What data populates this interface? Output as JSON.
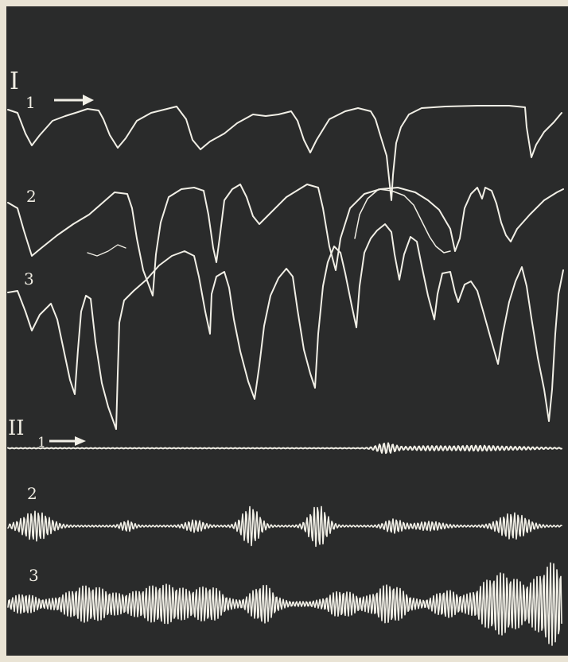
{
  "figure": {
    "section_1": {
      "roman_label": "I",
      "traces": [
        {
          "label": "1",
          "arrow": "→"
        },
        {
          "label": "2"
        },
        {
          "label": "3"
        }
      ]
    },
    "section_2": {
      "roman_label": "II",
      "traces": [
        {
          "label": "1",
          "arrow": "→"
        },
        {
          "label": "2"
        },
        {
          "label": "3"
        }
      ]
    }
  },
  "colors": {
    "paper": "#e9e3d4",
    "background": "#2a2b2b",
    "trace": "#f1efe6"
  }
}
